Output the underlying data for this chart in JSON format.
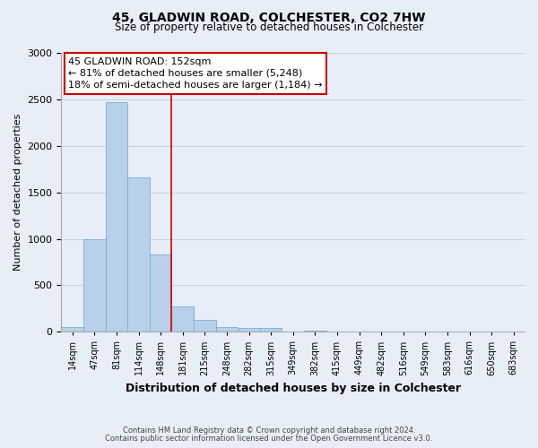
{
  "title": "45, GLADWIN ROAD, COLCHESTER, CO2 7HW",
  "subtitle": "Size of property relative to detached houses in Colchester",
  "xlabel": "Distribution of detached houses by size in Colchester",
  "ylabel": "Number of detached properties",
  "footnote1": "Contains HM Land Registry data © Crown copyright and database right 2024.",
  "footnote2": "Contains public sector information licensed under the Open Government Licence v3.0.",
  "bin_labels": [
    "14sqm",
    "47sqm",
    "81sqm",
    "114sqm",
    "148sqm",
    "181sqm",
    "215sqm",
    "248sqm",
    "282sqm",
    "315sqm",
    "349sqm",
    "382sqm",
    "415sqm",
    "449sqm",
    "482sqm",
    "516sqm",
    "549sqm",
    "583sqm",
    "616sqm",
    "650sqm",
    "683sqm"
  ],
  "bin_values": [
    50,
    1000,
    2470,
    1660,
    835,
    270,
    125,
    55,
    40,
    40,
    0,
    10,
    0,
    0,
    0,
    0,
    0,
    0,
    0,
    0,
    0
  ],
  "bar_color": "#b8d0ea",
  "bar_edge_color": "#7aafd4",
  "vline_x_idx": 4,
  "vline_color": "#cc0000",
  "annotation_line1": "45 GLADWIN ROAD: 152sqm",
  "annotation_line2": "← 81% of detached houses are smaller (5,248)",
  "annotation_line3": "18% of semi-detached houses are larger (1,184) →",
  "annotation_box_edgecolor": "#cc0000",
  "annotation_box_facecolor": "#ffffff",
  "ylim": [
    0,
    3000
  ],
  "yticks": [
    0,
    500,
    1000,
    1500,
    2000,
    2500,
    3000
  ],
  "background_color": "#e8eef8",
  "grid_color": "#c8d4e4",
  "title_fontsize": 10,
  "subtitle_fontsize": 8.5,
  "ylabel_fontsize": 8,
  "xlabel_fontsize": 9,
  "tick_fontsize": 7,
  "annotation_fontsize": 8,
  "footnote_fontsize": 6
}
